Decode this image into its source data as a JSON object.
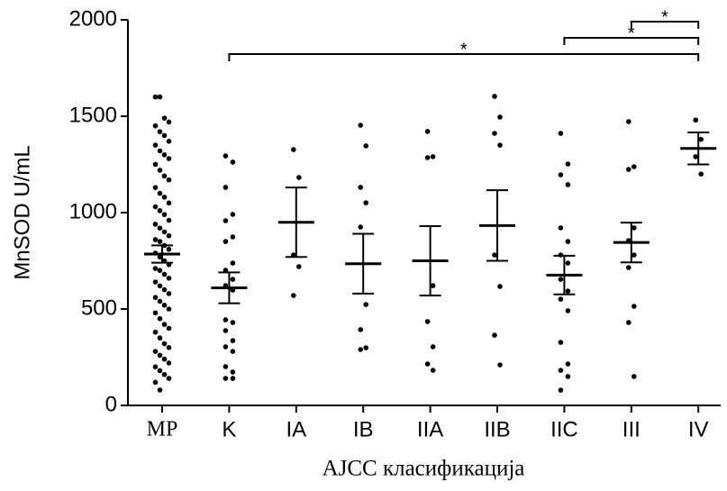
{
  "chart_data": {
    "type": "dotplot",
    "ylabel": "MnSOD U/mL",
    "xlabel": "AJCC класификација",
    "categories": [
      "MP",
      "K",
      "IA",
      "IB",
      "IIA",
      "IIB",
      "IIC",
      "III",
      "IV"
    ],
    "points": [
      [
        1600,
        1600,
        1490,
        1470,
        1450,
        1420,
        1400,
        1370,
        1350,
        1320,
        1300,
        1280,
        1250,
        1220,
        1190,
        1170,
        1130,
        1100,
        1080,
        1050,
        1030,
        1010,
        990,
        960,
        940,
        920,
        900,
        880,
        860,
        850,
        830,
        810,
        790,
        770,
        750,
        730,
        710,
        700,
        680,
        660,
        640,
        620,
        600,
        580,
        560,
        540,
        520,
        500,
        480,
        450,
        420,
        400,
        380,
        350,
        320,
        300,
        280,
        260,
        240,
        220,
        200,
        180,
        160,
        140,
        120,
        80
      ],
      [
        1294,
        1262,
        1131,
        991,
        958,
        874,
        850,
        738,
        701,
        654,
        621,
        598,
        444,
        430,
        388,
        336,
        304,
        280,
        201,
        173,
        140,
        140
      ],
      [
        1327,
        1182,
        780,
        720,
        570
      ],
      [
        1453,
        1346,
        1131,
        1051,
        925,
        523,
        393,
        299,
        290
      ],
      [
        1421,
        1290,
        1285,
        621,
        435,
        304,
        215,
        182
      ],
      [
        1603,
        1495,
        1411,
        1350,
        780,
        617,
        364,
        210
      ],
      [
        1411,
        1252,
        1196,
        1145,
        921,
        850,
        780,
        738,
        654,
        593,
        551,
        491,
        327,
        215,
        182,
        150,
        79
      ],
      [
        1472,
        1238,
        1224,
        921,
        855,
        780,
        715,
        514,
        430,
        150
      ],
      [
        1480,
        1380,
        1290,
        1200
      ]
    ],
    "mean": [
      785,
      610,
      950,
      735,
      750,
      933,
      676,
      845,
      1333
    ],
    "error": [
      45,
      80,
      180,
      155,
      180,
      183,
      100,
      103,
      83
    ],
    "color": "#000000",
    "ylim": [
      0,
      2000
    ],
    "yticks": [
      0,
      500,
      1000,
      1500,
      2000
    ],
    "significance": [
      {
        "from": "III",
        "to": "IV",
        "label": "*"
      },
      {
        "from": "IIC",
        "to": "IV",
        "label": "*"
      },
      {
        "from": "K",
        "to": "IV",
        "label": "*"
      }
    ]
  }
}
